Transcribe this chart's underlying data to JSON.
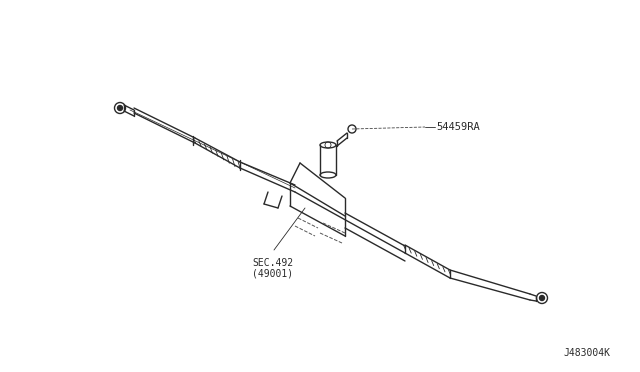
{
  "bg_color": "#ffffff",
  "line_color": "#2a2a2a",
  "label_54459RA": "54459RA",
  "label_sec": "SEC.492",
  "label_sec2": "(49001)",
  "label_part_num": "J483004K",
  "fig_width": 6.4,
  "fig_height": 3.72,
  "dpi": 100
}
